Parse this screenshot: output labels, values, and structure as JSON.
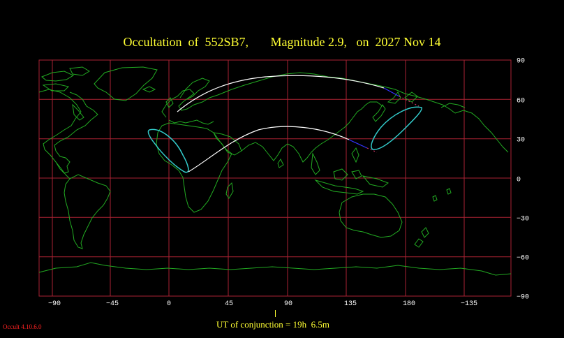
{
  "title": "Occultation  of  552SB7,       Magnitude 2.9,   on  2027 Nov 14",
  "conjunction_label": "UT of conjunction = 19h  6.5m",
  "version_label": "Occult 4.10.6.0",
  "x_ticks": [
    "−90",
    "−45",
    "0",
    "45",
    "90",
    "135",
    "180",
    "−135"
  ],
  "y_ticks": [
    "90",
    "60",
    "30",
    "0",
    "−30",
    "−60",
    "−90"
  ],
  "colors": {
    "background": "#000000",
    "grid": "#aa2233",
    "coastline": "#22aa22",
    "centre_line": "#ffffff",
    "path_limit": "#33cccc",
    "title_text": "#ffff33",
    "version_text": "#ff2222"
  }
}
